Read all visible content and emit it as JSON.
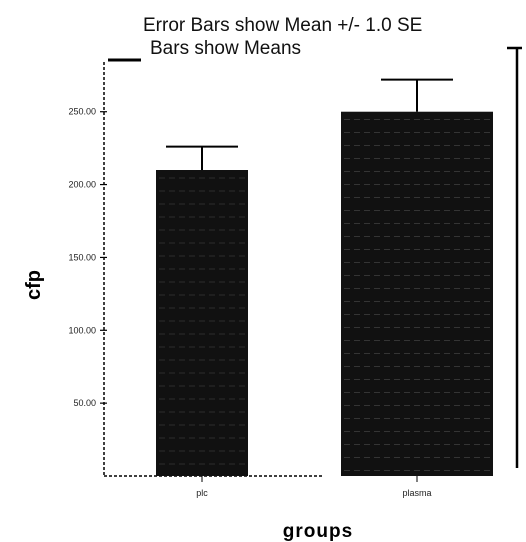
{
  "chart_data": {
    "type": "bar",
    "title": "Error Bars show Mean +/- 1.0 SE",
    "subtitle": "Bars show Means",
    "xlabel": "groups",
    "ylabel": "cfp",
    "categories": [
      "plc",
      "plasma"
    ],
    "values": [
      210,
      250
    ],
    "error_upper": [
      226,
      272
    ],
    "ylim": [
      0,
      280
    ],
    "yticks": [
      50,
      100,
      150,
      200,
      250
    ],
    "ytick_labels": [
      "50.00",
      "100.00",
      "150.00",
      "200.00",
      "250.00"
    ],
    "grid": false,
    "legend": "none",
    "bar_color": "#111111"
  }
}
